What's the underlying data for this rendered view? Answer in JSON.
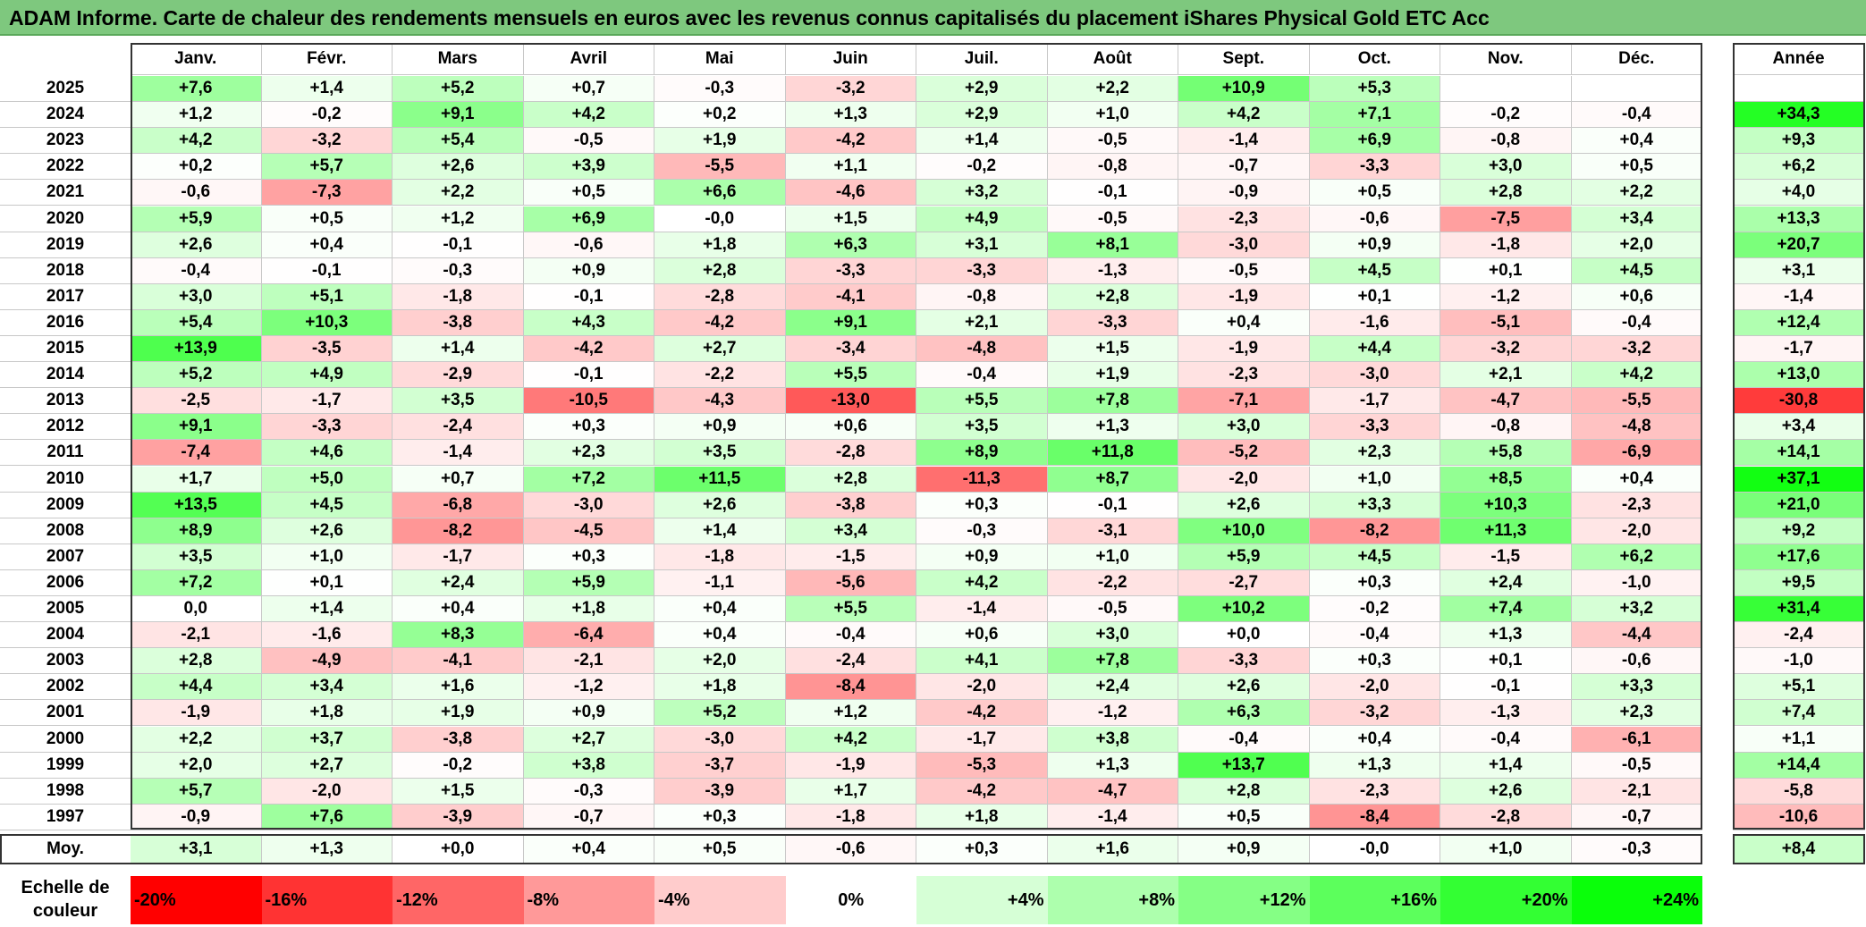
{
  "title": "ADAM Informe. Carte de chaleur des rendements mensuels en euros avec les revenus connus capitalisés du placement iShares Physical Gold ETC Acc",
  "chart_data": {
    "type": "heatmap",
    "months": [
      "Janv.",
      "Févr.",
      "Mars",
      "Avril",
      "Mai",
      "Juin",
      "Juil.",
      "Août",
      "Sept.",
      "Oct.",
      "Nov.",
      "Déc."
    ],
    "year_header": "Année",
    "rows": [
      {
        "year": "2025",
        "values": [
          "+7,6",
          "+1,4",
          "+5,2",
          "+0,7",
          "-0,3",
          "-3,2",
          "+2,9",
          "+2,2",
          "+10,9",
          "+5,3",
          "",
          ""
        ],
        "annual": ""
      },
      {
        "year": "2024",
        "values": [
          "+1,2",
          "-0,2",
          "+9,1",
          "+4,2",
          "+0,2",
          "+1,3",
          "+2,9",
          "+1,0",
          "+4,2",
          "+7,1",
          "-0,2",
          "-0,4"
        ],
        "annual": "+34,3"
      },
      {
        "year": "2023",
        "values": [
          "+4,2",
          "-3,2",
          "+5,4",
          "-0,5",
          "+1,9",
          "-4,2",
          "+1,4",
          "-0,5",
          "-1,4",
          "+6,9",
          "-0,8",
          "+0,4"
        ],
        "annual": "+9,3"
      },
      {
        "year": "2022",
        "values": [
          "+0,2",
          "+5,7",
          "+2,6",
          "+3,9",
          "-5,5",
          "+1,1",
          "-0,2",
          "-0,8",
          "-0,7",
          "-3,3",
          "+3,0",
          "+0,5"
        ],
        "annual": "+6,2"
      },
      {
        "year": "2021",
        "values": [
          "-0,6",
          "-7,3",
          "+2,2",
          "+0,5",
          "+6,6",
          "-4,6",
          "+3,2",
          "-0,1",
          "-0,9",
          "+0,5",
          "+2,8",
          "+2,2"
        ],
        "annual": "+4,0"
      },
      {
        "year": "2020",
        "values": [
          "+5,9",
          "+0,5",
          "+1,2",
          "+6,9",
          "-0,0",
          "+1,5",
          "+4,9",
          "-0,5",
          "-2,3",
          "-0,6",
          "-7,5",
          "+3,4"
        ],
        "annual": "+13,3"
      },
      {
        "year": "2019",
        "values": [
          "+2,6",
          "+0,4",
          "-0,1",
          "-0,6",
          "+1,8",
          "+6,3",
          "+3,1",
          "+8,1",
          "-3,0",
          "+0,9",
          "-1,8",
          "+2,0"
        ],
        "annual": "+20,7"
      },
      {
        "year": "2018",
        "values": [
          "-0,4",
          "-0,1",
          "-0,3",
          "+0,9",
          "+2,8",
          "-3,3",
          "-3,3",
          "-1,3",
          "-0,5",
          "+4,5",
          "+0,1",
          "+4,5"
        ],
        "annual": "+3,1"
      },
      {
        "year": "2017",
        "values": [
          "+3,0",
          "+5,1",
          "-1,8",
          "-0,1",
          "-2,8",
          "-4,1",
          "-0,8",
          "+2,8",
          "-1,9",
          "+0,1",
          "-1,2",
          "+0,6"
        ],
        "annual": "-1,4"
      },
      {
        "year": "2016",
        "values": [
          "+5,4",
          "+10,3",
          "-3,8",
          "+4,3",
          "-4,2",
          "+9,1",
          "+2,1",
          "-3,3",
          "+0,4",
          "-1,6",
          "-5,1",
          "-0,4"
        ],
        "annual": "+12,4"
      },
      {
        "year": "2015",
        "values": [
          "+13,9",
          "-3,5",
          "+1,4",
          "-4,2",
          "+2,7",
          "-3,4",
          "-4,8",
          "+1,5",
          "-1,9",
          "+4,4",
          "-3,2",
          "-3,2"
        ],
        "annual": "-1,7"
      },
      {
        "year": "2014",
        "values": [
          "+5,2",
          "+4,9",
          "-2,9",
          "-0,1",
          "-2,2",
          "+5,5",
          "-0,4",
          "+1,9",
          "-2,3",
          "-3,0",
          "+2,1",
          "+4,2"
        ],
        "annual": "+13,0"
      },
      {
        "year": "2013",
        "values": [
          "-2,5",
          "-1,7",
          "+3,5",
          "-10,5",
          "-4,3",
          "-13,0",
          "+5,5",
          "+7,8",
          "-7,1",
          "-1,7",
          "-4,7",
          "-5,5"
        ],
        "annual": "-30,8"
      },
      {
        "year": "2012",
        "values": [
          "+9,1",
          "-3,3",
          "-2,4",
          "+0,3",
          "+0,9",
          "+0,6",
          "+3,5",
          "+1,3",
          "+3,0",
          "-3,3",
          "-0,8",
          "-4,8"
        ],
        "annual": "+3,4"
      },
      {
        "year": "2011",
        "values": [
          "-7,4",
          "+4,6",
          "-1,4",
          "+2,3",
          "+3,5",
          "-2,8",
          "+8,9",
          "+11,8",
          "-5,2",
          "+2,3",
          "+5,8",
          "-6,9"
        ],
        "annual": "+14,1"
      },
      {
        "year": "2010",
        "values": [
          "+1,7",
          "+5,0",
          "+0,7",
          "+7,2",
          "+11,5",
          "+2,8",
          "-11,3",
          "+8,7",
          "-2,0",
          "+1,0",
          "+8,5",
          "+0,4"
        ],
        "annual": "+37,1"
      },
      {
        "year": "2009",
        "values": [
          "+13,5",
          "+4,5",
          "-6,8",
          "-3,0",
          "+2,6",
          "-3,8",
          "+0,3",
          "-0,1",
          "+2,6",
          "+3,3",
          "+10,3",
          "-2,3"
        ],
        "annual": "+21,0"
      },
      {
        "year": "2008",
        "values": [
          "+8,9",
          "+2,6",
          "-8,2",
          "-4,5",
          "+1,4",
          "+3,4",
          "-0,3",
          "-3,1",
          "+10,0",
          "-8,2",
          "+11,3",
          "-2,0"
        ],
        "annual": "+9,2"
      },
      {
        "year": "2007",
        "values": [
          "+3,5",
          "+1,0",
          "-1,7",
          "+0,3",
          "-1,8",
          "-1,5",
          "+0,9",
          "+1,0",
          "+5,9",
          "+4,5",
          "-1,5",
          "+6,2"
        ],
        "annual": "+17,6"
      },
      {
        "year": "2006",
        "values": [
          "+7,2",
          "+0,1",
          "+2,4",
          "+5,9",
          "-1,1",
          "-5,6",
          "+4,2",
          "-2,2",
          "-2,7",
          "+0,3",
          "+2,4",
          "-1,0"
        ],
        "annual": "+9,5"
      },
      {
        "year": "2005",
        "values": [
          "0,0",
          "+1,4",
          "+0,4",
          "+1,8",
          "+0,4",
          "+5,5",
          "-1,4",
          "-0,5",
          "+10,2",
          "-0,2",
          "+7,4",
          "+3,2"
        ],
        "annual": "+31,4"
      },
      {
        "year": "2004",
        "values": [
          "-2,1",
          "-1,6",
          "+8,3",
          "-6,4",
          "+0,4",
          "-0,4",
          "+0,6",
          "+3,0",
          "+0,0",
          "-0,4",
          "+1,3",
          "-4,4"
        ],
        "annual": "-2,4"
      },
      {
        "year": "2003",
        "values": [
          "+2,8",
          "-4,9",
          "-4,1",
          "-2,1",
          "+2,0",
          "-2,4",
          "+4,1",
          "+7,8",
          "-3,3",
          "+0,3",
          "+0,1",
          "-0,6"
        ],
        "annual": "-1,0"
      },
      {
        "year": "2002",
        "values": [
          "+4,4",
          "+3,4",
          "+1,6",
          "-1,2",
          "+1,8",
          "-8,4",
          "-2,0",
          "+2,4",
          "+2,6",
          "-2,0",
          "-0,1",
          "+3,3"
        ],
        "annual": "+5,1"
      },
      {
        "year": "2001",
        "values": [
          "-1,9",
          "+1,8",
          "+1,9",
          "+0,9",
          "+5,2",
          "+1,2",
          "-4,2",
          "-1,2",
          "+6,3",
          "-3,2",
          "-1,3",
          "+2,3"
        ],
        "annual": "+7,4"
      },
      {
        "year": "2000",
        "values": [
          "+2,2",
          "+3,7",
          "-3,8",
          "+2,7",
          "-3,0",
          "+4,2",
          "-1,7",
          "+3,8",
          "-0,4",
          "+0,4",
          "-0,4",
          "-6,1"
        ],
        "annual": "+1,1"
      },
      {
        "year": "1999",
        "values": [
          "+2,0",
          "+2,7",
          "-0,2",
          "+3,8",
          "-3,7",
          "-1,9",
          "-5,3",
          "+1,3",
          "+13,7",
          "+1,3",
          "+1,4",
          "-0,5"
        ],
        "annual": "+14,4"
      },
      {
        "year": "1998",
        "values": [
          "+5,7",
          "-2,0",
          "+1,5",
          "-0,3",
          "-3,9",
          "+1,7",
          "-4,2",
          "-4,7",
          "+2,8",
          "-2,3",
          "+2,6",
          "-2,1"
        ],
        "annual": "-5,8"
      },
      {
        "year": "1997",
        "values": [
          "-0,9",
          "+7,6",
          "-3,9",
          "-0,7",
          "+0,3",
          "-1,8",
          "+1,8",
          "-1,4",
          "+0,5",
          "-8,4",
          "-2,8",
          "-0,7"
        ],
        "annual": "-10,6"
      }
    ],
    "average": {
      "label": "Moy.",
      "values": [
        "+3,1",
        "+1,3",
        "+0,0",
        "+0,4",
        "+0,5",
        "-0,6",
        "+0,3",
        "+1,6",
        "+0,9",
        "-0,0",
        "+1,0",
        "-0,3"
      ],
      "annual": "+8,4"
    },
    "scale": {
      "label": "Echelle de couleur",
      "steps": [
        {
          "label": "-20%",
          "value": -20,
          "color": "#ff0000"
        },
        {
          "label": "-16%",
          "value": -16,
          "color": "#ff3333"
        },
        {
          "label": "-12%",
          "value": -12,
          "color": "#ff6666"
        },
        {
          "label": "-8%",
          "value": -8,
          "color": "#ff9999"
        },
        {
          "label": "-4%",
          "value": -4,
          "color": "#ffcccc"
        },
        {
          "label": "0%",
          "value": 0,
          "color": "#ffffff"
        },
        {
          "label": "+4%",
          "value": 4,
          "color": "#d6ffd6"
        },
        {
          "label": "+8%",
          "value": 8,
          "color": "#adffad"
        },
        {
          "label": "+12%",
          "value": 12,
          "color": "#85ff85"
        },
        {
          "label": "+16%",
          "value": 16,
          "color": "#5cff5c"
        },
        {
          "label": "+20%",
          "value": 20,
          "color": "#33ff33"
        },
        {
          "label": "+24%",
          "value": 24,
          "color": "#0aff0a"
        }
      ]
    }
  },
  "colors": {
    "title_bar": "#7ec87e",
    "negative_max": "#ff0000",
    "positive_max": "#00ff00",
    "neutral": "#ffffff"
  }
}
